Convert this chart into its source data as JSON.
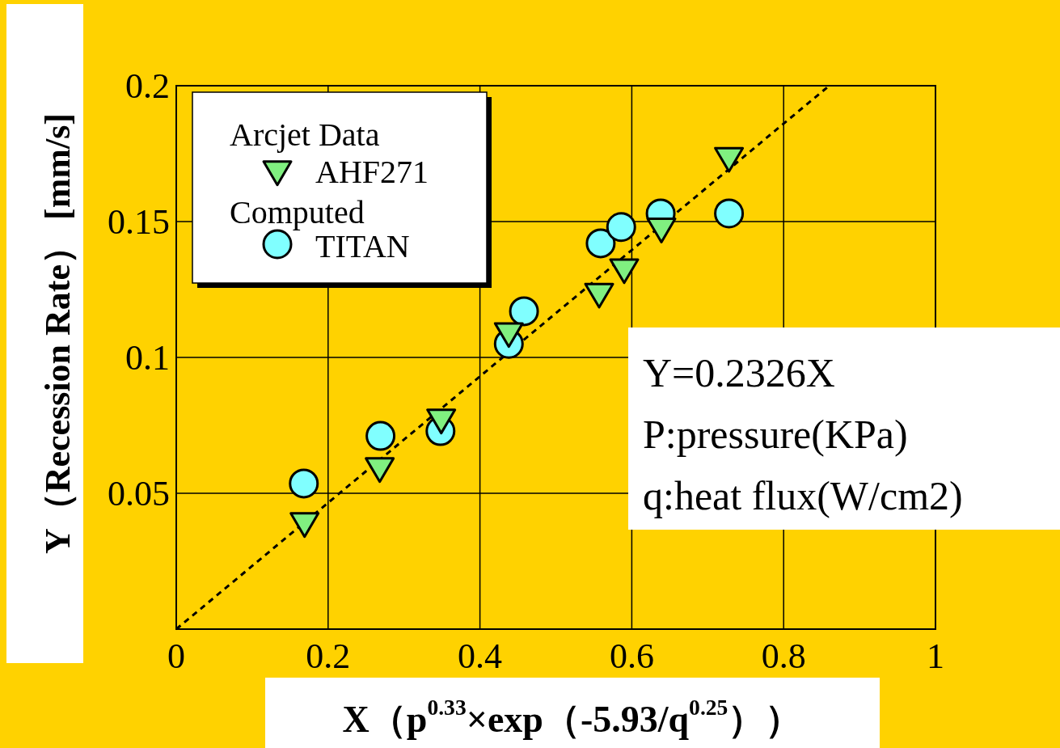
{
  "chart_data": {
    "type": "scatter",
    "xlabel": "X（p$^{0.33}$×exp（-5.93/q$^{0.25}$））",
    "ylabel": "Y（Recession Rate）  [mm/s]",
    "xlim": [
      0,
      1
    ],
    "ylim": [
      0,
      0.2
    ],
    "xticks": [
      0,
      0.2,
      0.4,
      0.6,
      0.8,
      1
    ],
    "yticks": [
      0.05,
      0.1,
      0.15,
      0.2
    ],
    "grid": true,
    "legend": "top left",
    "annotations": [
      "Arcjet Data",
      "Computed",
      "Y=0.2326X",
      "P:pressure(KPa)",
      "q:heat flux(W/cm2)"
    ],
    "series": [
      {
        "type": "line",
        "color": "#000000",
        "line_style": "dashed",
        "marker": "none",
        "x": [
          0,
          0.86
        ],
        "values": [
          0,
          0.2
        ]
      },
      {
        "name": "AHF271",
        "color": "#80f080",
        "marker": "triangle",
        "x": [
          0.169,
          0.268,
          0.349,
          0.438,
          0.557,
          0.59,
          0.639,
          0.728
        ],
        "values": [
          0.0396,
          0.0598,
          0.0777,
          0.1095,
          0.124,
          0.133,
          0.148,
          0.174
        ]
      },
      {
        "name": "TITAN",
        "color": "#80ffff",
        "marker": "circle",
        "x": [
          0.168,
          0.269,
          0.348,
          0.438,
          0.458,
          0.559,
          0.586,
          0.638,
          0.728
        ],
        "values": [
          0.0536,
          0.0711,
          0.0729,
          0.105,
          0.117,
          0.142,
          0.148,
          0.153,
          0.153
        ]
      }
    ]
  }
}
